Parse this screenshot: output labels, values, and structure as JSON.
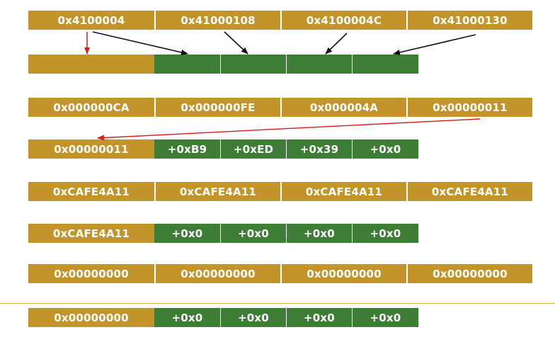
{
  "rows": [
    {
      "cells": [
        "0x4100004",
        "0x41000108",
        "0x4100004C",
        "0x41000130"
      ]
    },
    {
      "first": "",
      "offsets": [
        "",
        "",
        "",
        ""
      ]
    },
    {
      "cells": [
        "0x000000CA",
        "0x000000FE",
        "0x000004A",
        "0x00000011"
      ]
    },
    {
      "first": "0x00000011",
      "offsets": [
        "+0xB9",
        "+0xED",
        "+0x39",
        "+0x0"
      ]
    },
    {
      "cells": [
        "0xCAFE4A11",
        "0xCAFE4A11",
        "0xCAFE4A11",
        "0xCAFE4A11"
      ]
    },
    {
      "first": "0xCAFE4A11",
      "offsets": [
        "+0x0",
        "+0x0",
        "+0x0",
        "+0x0"
      ]
    },
    {
      "cells": [
        "0x00000000",
        "0x00000000",
        "0x00000000",
        "0x00000000"
      ]
    },
    {
      "first": "0x00000000",
      "offsets": [
        "+0x0",
        "+0x0",
        "+0x0",
        "+0x0"
      ]
    }
  ],
  "colors": {
    "gold": "#c39429",
    "green": "#3e7d35",
    "arrow_black": "#111111",
    "arrow_red": "#d91c1c"
  }
}
